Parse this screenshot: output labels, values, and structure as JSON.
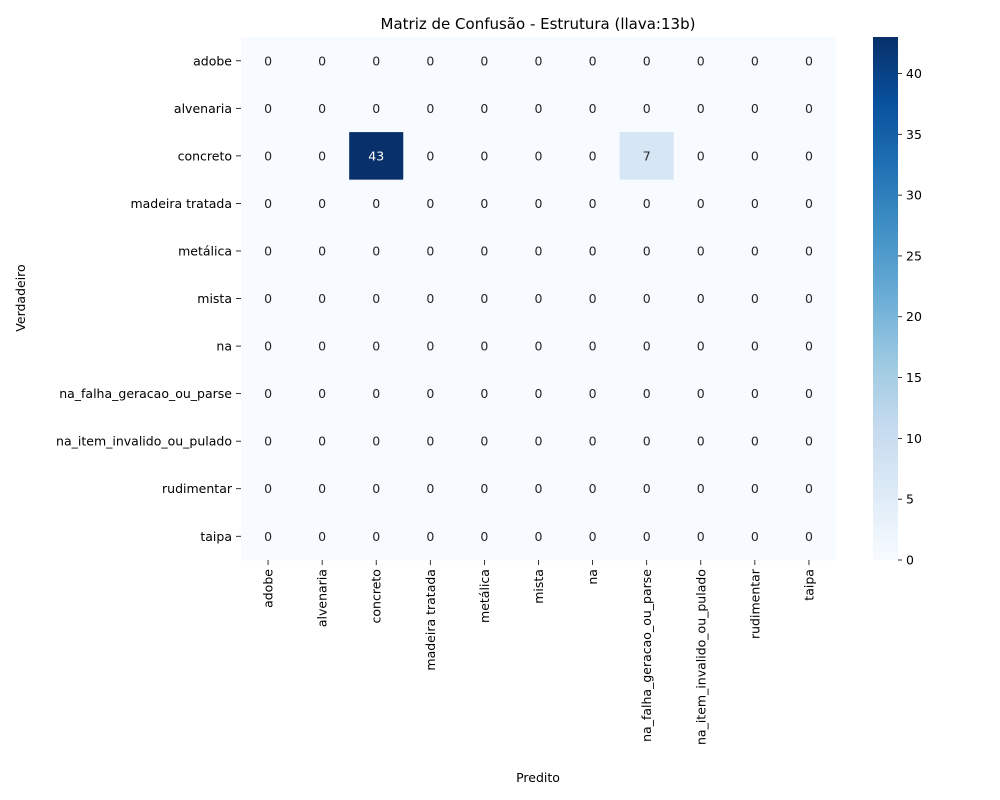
{
  "chart_data": {
    "type": "heatmap",
    "title": "Matriz de Confusão - Estrutura (llava:13b)",
    "xlabel": "Predito",
    "ylabel": "Verdadeiro",
    "row_labels": [
      "adobe",
      "alvenaria",
      "concreto",
      "madeira tratada",
      "metálica",
      "mista",
      "na",
      "na_falha_geracao_ou_parse",
      "na_item_invalido_ou_pulado",
      "rudimentar",
      "taipa"
    ],
    "col_labels": [
      "adobe",
      "alvenaria",
      "concreto",
      "madeira tratada",
      "metálica",
      "mista",
      "na",
      "na_falha_geracao_ou_parse",
      "na_item_invalido_ou_pulado",
      "rudimentar",
      "taipa"
    ],
    "values": [
      [
        0,
        0,
        0,
        0,
        0,
        0,
        0,
        0,
        0,
        0,
        0
      ],
      [
        0,
        0,
        0,
        0,
        0,
        0,
        0,
        0,
        0,
        0,
        0
      ],
      [
        0,
        0,
        43,
        0,
        0,
        0,
        0,
        7,
        0,
        0,
        0
      ],
      [
        0,
        0,
        0,
        0,
        0,
        0,
        0,
        0,
        0,
        0,
        0
      ],
      [
        0,
        0,
        0,
        0,
        0,
        0,
        0,
        0,
        0,
        0,
        0
      ],
      [
        0,
        0,
        0,
        0,
        0,
        0,
        0,
        0,
        0,
        0,
        0
      ],
      [
        0,
        0,
        0,
        0,
        0,
        0,
        0,
        0,
        0,
        0,
        0
      ],
      [
        0,
        0,
        0,
        0,
        0,
        0,
        0,
        0,
        0,
        0,
        0
      ],
      [
        0,
        0,
        0,
        0,
        0,
        0,
        0,
        0,
        0,
        0,
        0
      ],
      [
        0,
        0,
        0,
        0,
        0,
        0,
        0,
        0,
        0,
        0,
        0
      ],
      [
        0,
        0,
        0,
        0,
        0,
        0,
        0,
        0,
        0,
        0,
        0
      ]
    ],
    "colormap": "Blues",
    "colorbar": {
      "range": [
        0,
        43
      ],
      "ticks": [
        0,
        5,
        10,
        15,
        20,
        25,
        30,
        35,
        40
      ]
    }
  }
}
